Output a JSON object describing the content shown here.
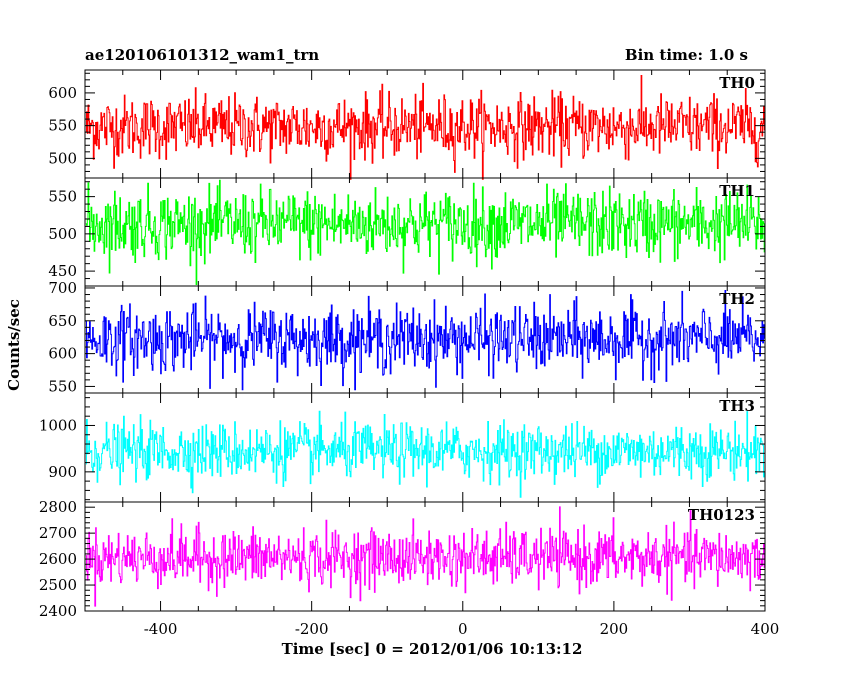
{
  "header": {
    "title": "ae120106101312_wam1_trn",
    "bin_time": "Bin time: 1.0 s"
  },
  "chart_data": {
    "type": "line",
    "xlabel": "Time [sec] 0 = 2012/01/06 10:13:12",
    "ylabel": "Counts/sec",
    "xlim": [
      -500,
      400
    ],
    "x_sampling": {
      "start": -499,
      "end": 399,
      "step": 1
    },
    "x_ticks": [
      "-400",
      "-200",
      "0",
      "200",
      "400"
    ],
    "x_tick_values": [
      -400,
      -200,
      0,
      200,
      400
    ],
    "panels": [
      {
        "name": "TH0",
        "color": "#ff0000",
        "ylim": [
          470,
          635
        ],
        "y_ticks": [
          "500",
          "550",
          "600"
        ],
        "y_tick_values": [
          500,
          550,
          600
        ],
        "mean": 548,
        "spread": 24,
        "min": 468,
        "max": 635
      },
      {
        "name": "TH1",
        "color": "#00ff00",
        "ylim": [
          430,
          575
        ],
        "y_ticks": [
          "450",
          "500",
          "550"
        ],
        "y_tick_values": [
          450,
          500,
          550
        ],
        "mean": 513,
        "spread": 23,
        "min": 432,
        "max": 572
      },
      {
        "name": "TH2",
        "color": "#0000ff",
        "ylim": [
          540,
          703
        ],
        "y_ticks": [
          "550",
          "600",
          "650",
          "700"
        ],
        "y_tick_values": [
          550,
          600,
          650,
          700
        ],
        "mean": 622,
        "spread": 25,
        "min": 545,
        "max": 702
      },
      {
        "name": "TH3",
        "color": "#00ffff",
        "ylim": [
          835,
          1070
        ],
        "y_ticks": [
          "900",
          "1000"
        ],
        "y_tick_values": [
          900,
          1000
        ],
        "mean": 945,
        "spread": 30,
        "min": 842,
        "max": 1068
      },
      {
        "name": "TH0123",
        "color": "#ff00ff",
        "ylim": [
          2400,
          2820
        ],
        "y_ticks": [
          "2400",
          "2500",
          "2600",
          "2700",
          "2800"
        ],
        "y_tick_values": [
          2400,
          2500,
          2600,
          2700,
          2800
        ],
        "mean": 2605,
        "spread": 55,
        "min": 2400,
        "max": 2815
      }
    ]
  }
}
